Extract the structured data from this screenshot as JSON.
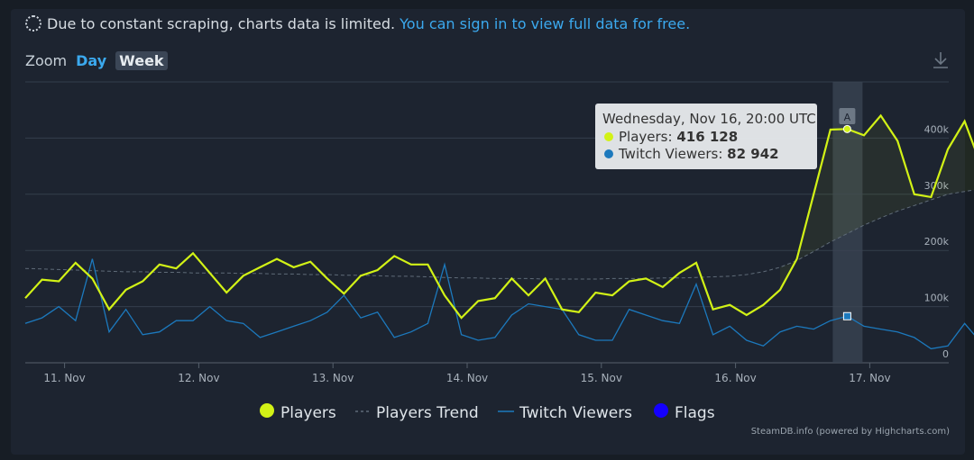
{
  "notice": {
    "text": "Due to constant scraping, charts data is limited.",
    "link": "You can sign in to view full data for free.",
    "icon": "dashed-circle-icon"
  },
  "zoom": {
    "label": "Zoom",
    "day": "Day",
    "week": "Week",
    "selected": "Week"
  },
  "download_icon": "download-icon",
  "credit": "SteamDB.info (powered by Highcharts.com)",
  "colors": {
    "players": "#d2f216",
    "twitch": "#1c79bd",
    "trend": "#5f6b78",
    "flags": "#1400ff",
    "background": "#1d2430"
  },
  "chart_data": {
    "type": "line",
    "xlabel": "",
    "ylabel": "",
    "x_start": "10 Nov 20:00",
    "x_step_hours": 3,
    "x_ticks": [
      "11. Nov",
      "12. Nov",
      "13. Nov",
      "14. Nov",
      "15. Nov",
      "16. Nov",
      "17. Nov"
    ],
    "x_tick_positions": [
      1,
      9,
      17,
      25,
      33,
      41,
      49
    ],
    "y_ticks": [
      "0",
      "100k",
      "200k",
      "300k",
      "400k"
    ],
    "y_tick_values": [
      0,
      100000,
      200000,
      300000,
      400000
    ],
    "ylim": [
      0,
      500000
    ],
    "series": [
      {
        "name": "Players",
        "values": [
          115000,
          148000,
          145000,
          178000,
          150000,
          95000,
          130000,
          145000,
          175000,
          168000,
          195000,
          160000,
          125000,
          155000,
          170000,
          185000,
          170000,
          180000,
          150000,
          123000,
          155000,
          165000,
          190000,
          175000,
          175000,
          120000,
          80000,
          110000,
          115000,
          150000,
          120000,
          150000,
          95000,
          90000,
          125000,
          120000,
          145000,
          150000,
          135000,
          160000,
          178000,
          95000,
          103000,
          85000,
          103000,
          130000,
          185000,
          300000,
          415000,
          416128,
          405000,
          440000,
          395000,
          300000,
          295000,
          380000,
          430000,
          350000
        ]
      },
      {
        "name": "Players Trend",
        "values": [
          168000,
          167000,
          166000,
          165000,
          164000,
          163000,
          162000,
          162000,
          161000,
          161000,
          160000,
          160000,
          160000,
          159000,
          159000,
          158000,
          158000,
          157000,
          157000,
          156000,
          156000,
          155000,
          154000,
          154000,
          153000,
          152000,
          151000,
          151000,
          150000,
          150000,
          150000,
          149000,
          149000,
          149000,
          149000,
          150000,
          150000,
          150000,
          151000,
          151000,
          152000,
          153000,
          154000,
          157000,
          162000,
          170000,
          182000,
          198000,
          215000,
          230000,
          245000,
          258000,
          270000,
          280000,
          290000,
          300000,
          305000,
          310000
        ]
      },
      {
        "name": "Twitch Viewers",
        "values": [
          70000,
          80000,
          100000,
          75000,
          185000,
          55000,
          95000,
          50000,
          55000,
          75000,
          75000,
          100000,
          75000,
          70000,
          45000,
          55000,
          65000,
          75000,
          90000,
          120000,
          80000,
          90000,
          45000,
          55000,
          70000,
          175000,
          50000,
          40000,
          45000,
          85000,
          105000,
          100000,
          95000,
          50000,
          40000,
          40000,
          95000,
          85000,
          75000,
          70000,
          140000,
          50000,
          65000,
          40000,
          30000,
          55000,
          65000,
          60000,
          75000,
          82942,
          65000,
          60000,
          55000,
          45000,
          25000,
          30000,
          70000,
          35000
        ]
      },
      {
        "name": "Flags",
        "values": []
      }
    ],
    "tooltip": {
      "title": "Wednesday, Nov 16, 20:00 UTC",
      "players_label": "Players:",
      "players_value": "416 128",
      "twitch_label": "Twitch Viewers:",
      "twitch_value": "82 942",
      "index": 49
    },
    "flag": {
      "label": "A",
      "index": 49
    },
    "legend": {
      "position": "bottom-center",
      "items": [
        "Players",
        "Players Trend",
        "Twitch Viewers",
        "Flags"
      ]
    },
    "grid": true
  }
}
